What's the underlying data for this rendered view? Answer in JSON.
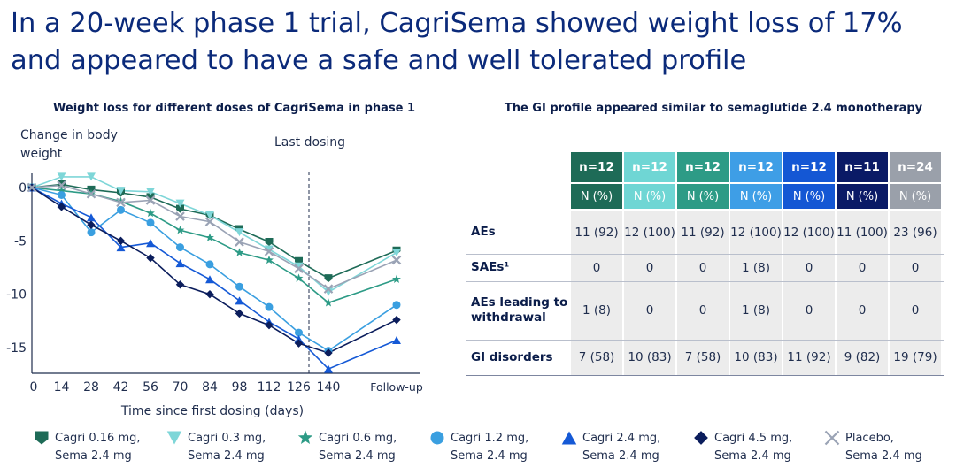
{
  "title": {
    "line1": "In a 20-week phase 1 trial, CagriSema showed weight loss of 17%",
    "line2": "and appeared to have a safe and well tolerated profile"
  },
  "chart_title": "Weight loss for different doses of CagriSema in phase 1",
  "table_title": "The GI profile appeared similar to semaglutide 2.4 monotherapy",
  "chart_data": {
    "type": "line",
    "title": "Weight loss for different doses of CagriSema in phase 1",
    "ylabel": "Change in body weight",
    "xlabel": "Time since first dosing (days)",
    "annotation": "Last dosing",
    "annotation_x": 133,
    "x_tick_labels": [
      "0",
      "14",
      "28",
      "42",
      "56",
      "70",
      "84",
      "98",
      "112",
      "126",
      "140",
      "Follow-up"
    ],
    "x": [
      0,
      14,
      28,
      42,
      56,
      70,
      84,
      98,
      112,
      126,
      140,
      175
    ],
    "y_ticks": [
      0,
      -5,
      -10,
      -15
    ],
    "ylim": [
      -17.5,
      1
    ],
    "series": [
      {
        "name": "Cagri 0.16 mg, Sema 2.4 mg",
        "color": "#1e6b57",
        "marker": "shield",
        "values": [
          0,
          0.3,
          -0.2,
          -0.5,
          -0.9,
          -2.0,
          -2.6,
          -3.9,
          -5.1,
          -6.9,
          -8.5,
          -5.9
        ]
      },
      {
        "name": "Cagri 0.3 mg, Sema 2.4 mg",
        "color": "#7ed6d8",
        "marker": "triangle-down",
        "values": [
          0,
          1.0,
          1.0,
          -0.3,
          -0.4,
          -1.5,
          -2.6,
          -4.2,
          -5.8,
          -7.4,
          -9.8,
          -6.1
        ]
      },
      {
        "name": "Cagri 0.6 mg, Sema 2.4 mg",
        "color": "#2d9b86",
        "marker": "star",
        "values": [
          0,
          -0.3,
          -0.6,
          -1.3,
          -2.4,
          -4.0,
          -4.7,
          -6.1,
          -6.8,
          -8.5,
          -10.8,
          -8.6
        ]
      },
      {
        "name": "Cagri 1.2 mg, Sema 2.4 mg",
        "color": "#3a9fe0",
        "marker": "circle",
        "values": [
          0,
          -0.7,
          -4.2,
          -2.1,
          -3.3,
          -5.6,
          -7.2,
          -9.3,
          -11.2,
          -13.6,
          -15.3,
          -11.0
        ]
      },
      {
        "name": "Cagri 2.4 mg, Sema 2.4 mg",
        "color": "#1559d6",
        "marker": "triangle-up",
        "values": [
          0,
          -1.5,
          -2.8,
          -5.6,
          -5.2,
          -7.1,
          -8.6,
          -10.6,
          -12.6,
          -14.2,
          -17.0,
          -14.3
        ]
      },
      {
        "name": "Cagri 4.5 mg, Sema 2.4 mg",
        "color": "#0b1d5c",
        "marker": "diamond",
        "values": [
          0,
          -1.8,
          -3.5,
          -5.0,
          -6.6,
          -9.1,
          -10.0,
          -11.8,
          -12.9,
          -14.6,
          -15.5,
          -12.4
        ]
      },
      {
        "name": "Placebo, Sema 2.4 mg",
        "color": "#9aa3b5",
        "marker": "x",
        "values": [
          0,
          0.2,
          -0.6,
          -1.4,
          -1.2,
          -2.7,
          -3.2,
          -5.1,
          -6.0,
          -7.6,
          -9.5,
          -6.8
        ]
      }
    ]
  },
  "table": {
    "columns": [
      {
        "n": "n=12",
        "sub": "N (%)",
        "color": "#1e6b57",
        "sub_color": "#1e6b57"
      },
      {
        "n": "n=12",
        "sub": "N (%)",
        "color": "#6fd6d4",
        "sub_color": "#6fd6d4"
      },
      {
        "n": "n=12",
        "sub": "N (%)",
        "color": "#2d9b86",
        "sub_color": "#2d9b86"
      },
      {
        "n": "n=12",
        "sub": "N (%)",
        "color": "#3e9ee6",
        "sub_color": "#3e9ee6"
      },
      {
        "n": "n=12",
        "sub": "N (%)",
        "color": "#1457d4",
        "sub_color": "#1457d4"
      },
      {
        "n": "n=11",
        "sub": "N (%)",
        "color": "#0a1a66",
        "sub_color": "#0a1a66"
      },
      {
        "n": "n=24",
        "sub": "N (%)",
        "color": "#9aa0aa",
        "sub_color": "#9aa0aa"
      }
    ],
    "rows": [
      {
        "label": "AEs",
        "values": [
          "11 (92)",
          "12 (100)",
          "11 (92)",
          "12 (100)",
          "12 (100)",
          "11 (100)",
          "23 (96)"
        ]
      },
      {
        "label": "SAEs¹",
        "values": [
          "0",
          "0",
          "0",
          "1 (8)",
          "0",
          "0",
          "0"
        ]
      },
      {
        "label": "AEs leading to withdrawal",
        "values": [
          "1 (8)",
          "0",
          "0",
          "1 (8)",
          "0",
          "0",
          "0"
        ]
      },
      {
        "label": "GI disorders",
        "values": [
          "7 (58)",
          "10 (83)",
          "7 (58)",
          "10 (83)",
          "11 (92)",
          "9 (82)",
          "19 (79)"
        ]
      }
    ]
  },
  "legend": [
    {
      "line1": "Cagri 0.16 mg,",
      "line2": "Sema 2.4 mg",
      "color": "#1e6b57",
      "icon": "shield-icon"
    },
    {
      "line1": "Cagri 0.3 mg,",
      "line2": "Sema 2.4 mg",
      "color": "#7ed6d8",
      "icon": "triangle-down-icon"
    },
    {
      "line1": "Cagri 0.6 mg,",
      "line2": "Sema 2.4 mg",
      "color": "#2d9b86",
      "icon": "star-icon"
    },
    {
      "line1": "Cagri 1.2 mg,",
      "line2": "Sema 2.4 mg",
      "color": "#3a9fe0",
      "icon": "circle-icon"
    },
    {
      "line1": "Cagri 2.4 mg,",
      "line2": "Sema 2.4 mg",
      "color": "#1559d6",
      "icon": "triangle-up-icon"
    },
    {
      "line1": "Cagri 4.5 mg,",
      "line2": "Sema 2.4 mg",
      "color": "#0b1d5c",
      "icon": "diamond-icon"
    },
    {
      "line1": "Placebo,",
      "line2": "Sema 2.4 mg",
      "color": "#9aa3b5",
      "icon": "x-icon"
    }
  ]
}
